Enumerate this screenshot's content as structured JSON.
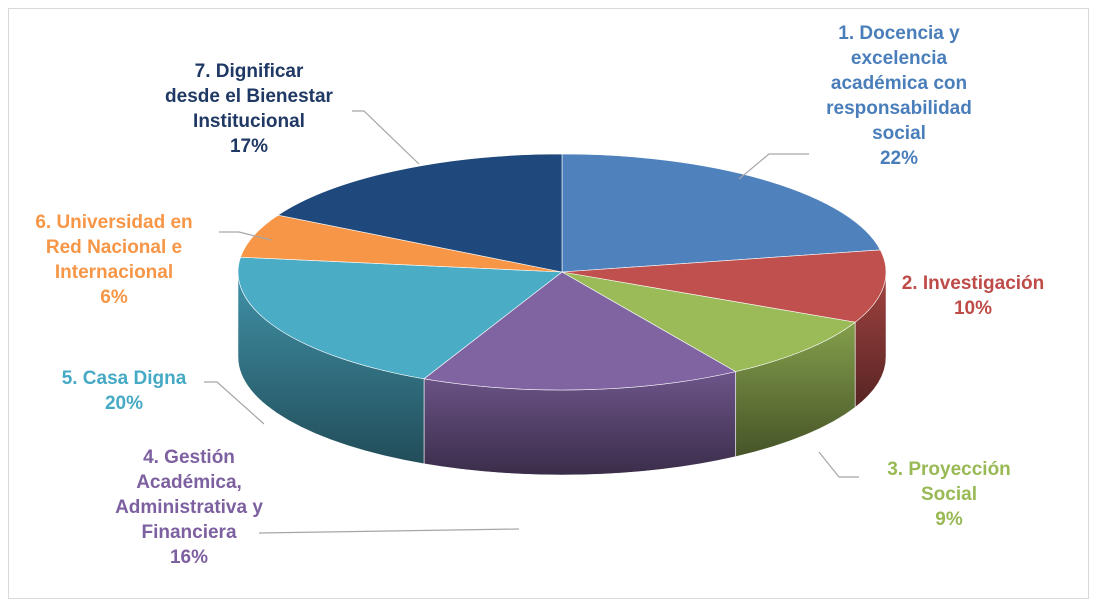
{
  "chart_data": {
    "type": "pie",
    "style": "3d-tilted",
    "slices": [
      {
        "label_lines": [
          "1. Docencia y",
          "excelencia",
          "académica con",
          "responsabilidad",
          "social"
        ],
        "value": 22,
        "value_text": "22%",
        "color": "#4f81bd"
      },
      {
        "label_lines": [
          "2. Investigación"
        ],
        "value": 10,
        "value_text": "10%",
        "color": "#c0504d"
      },
      {
        "label_lines": [
          "3. Proyección",
          "Social"
        ],
        "value": 9,
        "value_text": "9%",
        "color": "#9bbb59"
      },
      {
        "label_lines": [
          "4. Gestión",
          "Académica,",
          "Administrativa y",
          "Financiera"
        ],
        "value": 16,
        "value_text": "16%",
        "color": "#8064a2"
      },
      {
        "label_lines": [
          "5. Casa Digna"
        ],
        "value": 20,
        "value_text": "20%",
        "color": "#4bacc6"
      },
      {
        "label_lines": [
          "6. Universidad en",
          "Red Nacional e",
          "Internacional"
        ],
        "value": 6,
        "value_text": "6%",
        "color": "#f79646"
      },
      {
        "label_lines": [
          "7. Dignificar",
          "desde el Bienestar",
          "Institucional"
        ],
        "value": 17,
        "value_text": "17%",
        "color": "#1f497d"
      }
    ]
  }
}
